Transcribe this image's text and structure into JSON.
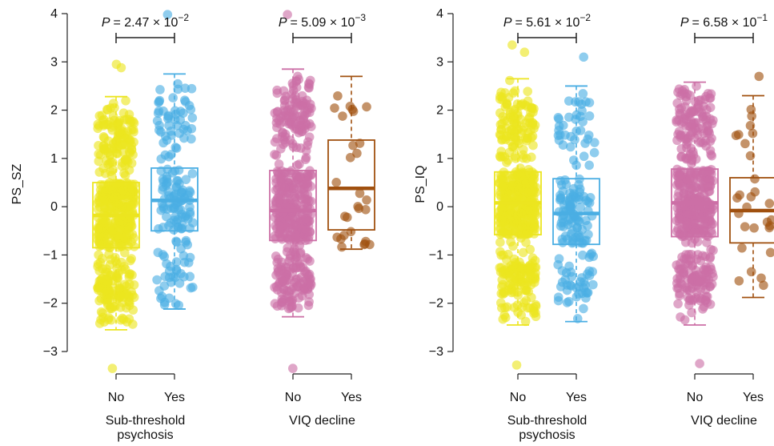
{
  "chart_data": [
    {
      "type": "box",
      "ylabel": "PS_SZ",
      "ylim": [
        -3.4,
        4.1
      ],
      "yticks": [
        -3,
        -2,
        -1,
        0,
        1,
        2,
        3,
        4
      ],
      "groups": [
        {
          "label_lines": [
            "Sub-threshold",
            "psychosis"
          ],
          "p_value": {
            "prefix": "P",
            "mantissa": "= 2.47 × 10",
            "exponent": "−2"
          },
          "boxes": [
            {
              "category": "No",
              "color": "#ece51f",
              "n_points": 520,
              "whisker_low": -2.55,
              "q1": -0.85,
              "median": -0.18,
              "q3": 0.5,
              "whisker_high": 2.28,
              "outliers": [
                -3.35,
                2.95,
                2.88
              ]
            },
            {
              "category": "Yes",
              "color": "#4aaee3",
              "n_points": 170,
              "whisker_low": -2.12,
              "q1": -0.5,
              "median": 0.13,
              "q3": 0.8,
              "whisker_high": 2.75,
              "outliers": [
                3.98
              ]
            }
          ]
        },
        {
          "label_lines": [
            "VIQ decline"
          ],
          "p_value": {
            "prefix": "P",
            "mantissa": "= 5.09 × 10",
            "exponent": "−3"
          },
          "boxes": [
            {
              "category": "No",
              "color": "#cc6fa6",
              "n_points": 480,
              "whisker_low": -2.28,
              "q1": -0.7,
              "median": -0.08,
              "q3": 0.75,
              "whisker_high": 2.85,
              "outliers": [
                -3.35,
                3.98
              ]
            },
            {
              "category": "Yes",
              "color": "#a0500f",
              "n_points": 28,
              "whisker_low": -0.88,
              "q1": -0.48,
              "median": 0.38,
              "q3": 1.38,
              "whisker_high": 2.7,
              "outliers": []
            }
          ]
        }
      ]
    },
    {
      "type": "box",
      "ylabel": "PS_IQ",
      "ylim": [
        -3.4,
        4.1
      ],
      "yticks": [
        -3,
        -2,
        -1,
        0,
        1,
        2,
        3,
        4
      ],
      "groups": [
        {
          "label_lines": [
            "Sub-threshold",
            "psychosis"
          ],
          "p_value": {
            "prefix": "P",
            "mantissa": "= 5.61 × 10",
            "exponent": "−2"
          },
          "boxes": [
            {
              "category": "No",
              "color": "#ece51f",
              "n_points": 520,
              "whisker_low": -2.45,
              "q1": -0.58,
              "median": 0.08,
              "q3": 0.72,
              "whisker_high": 2.65,
              "outliers": [
                -3.28,
                3.35,
                3.2
              ]
            },
            {
              "category": "Yes",
              "color": "#4aaee3",
              "n_points": 170,
              "whisker_low": -2.38,
              "q1": -0.78,
              "median": -0.14,
              "q3": 0.58,
              "whisker_high": 2.5,
              "outliers": [
                3.1
              ]
            }
          ]
        },
        {
          "label_lines": [
            "VIQ decline"
          ],
          "p_value": {
            "prefix": "P",
            "mantissa": "= 6.58 × 10",
            "exponent": "−1"
          },
          "boxes": [
            {
              "category": "No",
              "color": "#cc6fa6",
              "n_points": 480,
              "whisker_low": -2.45,
              "q1": -0.62,
              "median": 0.08,
              "q3": 0.78,
              "whisker_high": 2.58,
              "outliers": [
                -3.25
              ]
            },
            {
              "category": "Yes",
              "color": "#a0500f",
              "n_points": 28,
              "whisker_low": -1.88,
              "q1": -0.75,
              "median": -0.08,
              "q3": 0.6,
              "whisker_high": 2.3,
              "outliers": [
                2.7
              ]
            }
          ]
        }
      ]
    }
  ]
}
